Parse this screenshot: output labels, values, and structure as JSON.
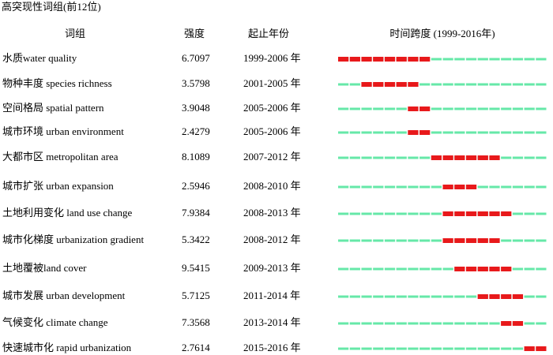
{
  "title": "高突现性词组(前12位)",
  "header": {
    "term": "词组",
    "strength": "强度",
    "period": "起止年份",
    "span": "时间跨度 (1999-2016年)"
  },
  "span": [
    1999,
    2016
  ],
  "rows": [
    {
      "term": "水质water quality",
      "strength": "6.7097",
      "period": "1999-2006 年",
      "begin": 1999,
      "end": 2006
    },
    {
      "term": "物种丰度 species richness",
      "strength": "3.5798",
      "period": "2001-2005 年",
      "begin": 2001,
      "end": 2005
    },
    {
      "term": "空间格局 spatial pattern",
      "strength": "3.9048",
      "period": "2005-2006 年",
      "begin": 2005,
      "end": 2006
    },
    {
      "term": "城市环境 urban environment",
      "strength": "2.4279",
      "period": "2005-2006 年",
      "begin": 2005,
      "end": 2006
    },
    {
      "term": "大都市区 metropolitan area",
      "strength": "8.1089",
      "period": "2007-2012 年",
      "begin": 2007,
      "end": 2012
    },
    {
      "term": "城市扩张 urban expansion",
      "strength": "2.5946",
      "period": "2008-2010 年",
      "begin": 2008,
      "end": 2010
    },
    {
      "term": "土地利用变化 land use change",
      "strength": "7.9384",
      "period": "2008-2013 年",
      "begin": 2008,
      "end": 2013
    },
    {
      "term": "城市化梯度 urbanization gradient",
      "strength": "5.3422",
      "period": "2008-2012 年",
      "begin": 2008,
      "end": 2012
    },
    {
      "term": "土地覆被land cover",
      "strength": "9.5415",
      "period": "2009-2013 年",
      "begin": 2009,
      "end": 2013
    },
    {
      "term": "城市发展 urban development",
      "strength": "5.7125",
      "period": "2011-2014 年",
      "begin": 2011,
      "end": 2014
    },
    {
      "term": "气候变化 climate change",
      "strength": "7.3568",
      "period": "2013-2014 年",
      "begin": 2013,
      "end": 2014
    },
    {
      "term": "快速城市化 rapid urbanization",
      "strength": "2.7614",
      "period": "2015-2016 年",
      "begin": 2015,
      "end": 2016
    }
  ]
}
